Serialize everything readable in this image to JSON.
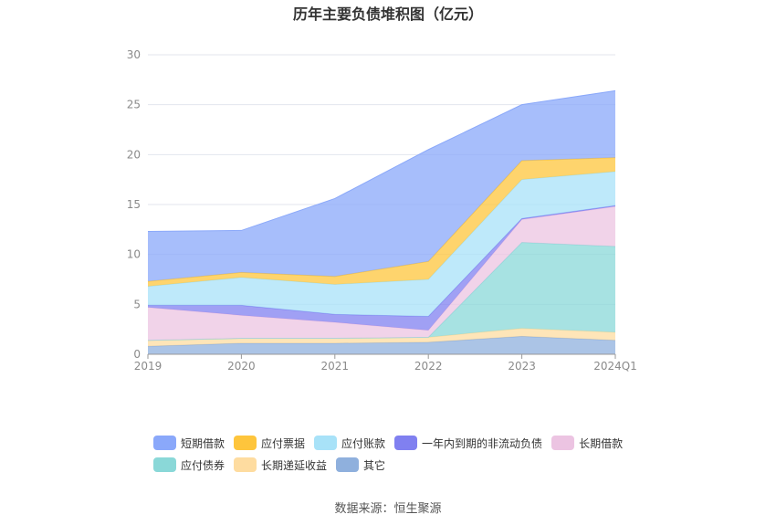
{
  "title": "历年主要负债堆积图（亿元）",
  "source": "数据来源：恒生聚源",
  "chart_data": {
    "type": "area",
    "stacked": true,
    "categories": [
      "2019",
      "2020",
      "2021",
      "2022",
      "2023",
      "2024Q1"
    ],
    "ylim": [
      0,
      30
    ],
    "yticks": [
      "0",
      "5",
      "10",
      "15",
      "20",
      "25",
      "30"
    ],
    "grid": true,
    "legend_position": "bottom",
    "series": [
      {
        "name": "其它",
        "color": "#8fb0dd",
        "values": [
          0.8,
          1.1,
          1.1,
          1.2,
          1.8,
          1.4
        ]
      },
      {
        "name": "长期递延收益",
        "color": "#fedca0",
        "values": [
          0.6,
          0.5,
          0.5,
          0.5,
          0.8,
          0.8
        ]
      },
      {
        "name": "应付债券",
        "color": "#8ad8d8",
        "values": [
          0,
          0,
          0,
          0,
          8.6,
          8.6
        ]
      },
      {
        "name": "长期借款",
        "color": "#ecc4e2",
        "values": [
          3.3,
          2.3,
          1.6,
          0.7,
          2.3,
          4.0
        ]
      },
      {
        "name": "一年内到期的非流动负债",
        "color": "#8080f0",
        "values": [
          0.2,
          1.0,
          0.8,
          1.4,
          0.1,
          0.1
        ]
      },
      {
        "name": "应付账款",
        "color": "#a8e2f8",
        "values": [
          1.9,
          2.8,
          3.0,
          3.7,
          3.9,
          3.4
        ]
      },
      {
        "name": "应付票据",
        "color": "#fec53c",
        "values": [
          0.5,
          0.5,
          0.8,
          1.8,
          1.9,
          1.4
        ]
      },
      {
        "name": "短期借款",
        "color": "#8aa8fa",
        "values": [
          5.0,
          4.2,
          7.8,
          11.2,
          5.6,
          6.7
        ]
      }
    ],
    "legend": [
      [
        "短期借款",
        "应付票据",
        "应付账款",
        "一年内到期的非流动负债",
        "长期借款"
      ],
      [
        "应付债券",
        "长期递延收益",
        "其它"
      ]
    ]
  }
}
